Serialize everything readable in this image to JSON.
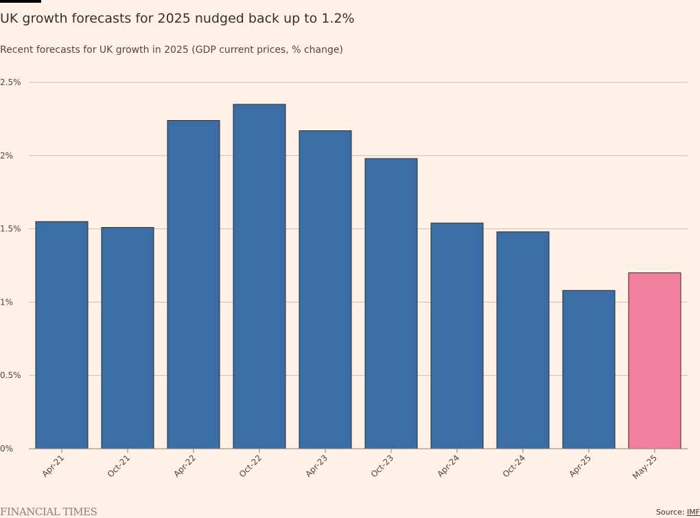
{
  "header": {
    "title": "UK growth forecasts for 2025 nudged back up to 1.2%",
    "subtitle": "Recent forecasts for UK growth in 2025 (GDP current prices, % change)"
  },
  "footer": {
    "brand": "FINANCIAL TIMES",
    "source_label": "Source: ",
    "source_link": "IMF"
  },
  "colors": {
    "background": "#fff1e5",
    "bar": "#3b6ea5",
    "highlight": "#f27f9f",
    "grid": "#c9bdb3"
  },
  "chart_data": {
    "type": "bar",
    "title": "UK growth forecasts for 2025 nudged back up to 1.2%",
    "xlabel": "",
    "ylabel": "",
    "categories": [
      "Apr-21",
      "Oct-21",
      "Apr-22",
      "Oct-22",
      "Apr-23",
      "Oct-23",
      "Apr-24",
      "Oct-24",
      "Apr-25",
      "May-25"
    ],
    "values": [
      1.55,
      1.51,
      2.24,
      2.35,
      2.17,
      1.98,
      1.54,
      1.48,
      1.08,
      1.2
    ],
    "highlight": [
      false,
      false,
      false,
      false,
      false,
      false,
      false,
      false,
      false,
      true
    ],
    "ylim": [
      0,
      2.5
    ],
    "yticks": [
      0,
      0.5,
      1,
      1.5,
      2,
      2.5
    ],
    "ytick_labels": [
      "0%",
      "0.5%",
      "1%",
      "1.5%",
      "2%",
      "2.5%"
    ],
    "grid": true
  }
}
